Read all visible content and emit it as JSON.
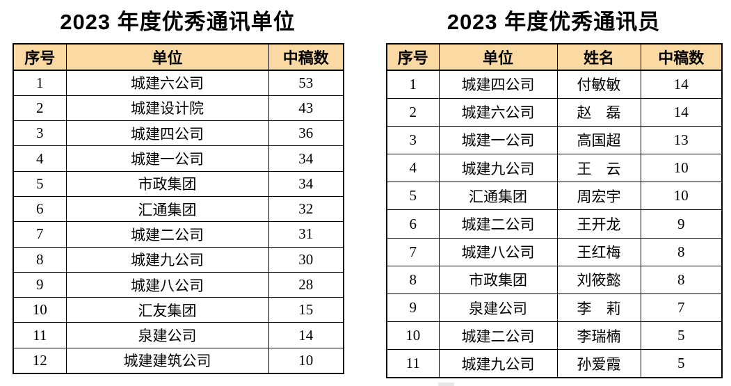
{
  "colors": {
    "header_fill": "#FBD9A2",
    "border": "#000000",
    "text": "#000000",
    "artifact_fill": "#E7E7E7",
    "background": "#FFFFFF"
  },
  "left_table": {
    "title": "2023 年度优秀通讯单位",
    "headers": [
      "序号",
      "单位",
      "中稿数"
    ],
    "rows": [
      [
        "1",
        "城建六公司",
        "53"
      ],
      [
        "2",
        "城建设计院",
        "43"
      ],
      [
        "3",
        "城建四公司",
        "36"
      ],
      [
        "4",
        "城建一公司",
        "34"
      ],
      [
        "5",
        "市政集团",
        "34"
      ],
      [
        "6",
        "汇通集团",
        "32"
      ],
      [
        "7",
        "城建二公司",
        "31"
      ],
      [
        "8",
        "城建九公司",
        "30"
      ],
      [
        "9",
        "城建八公司",
        "28"
      ],
      [
        "10",
        "汇友集团",
        "15"
      ],
      [
        "11",
        "泉建公司",
        "14"
      ],
      [
        "12",
        "城建建筑公司",
        "10"
      ]
    ]
  },
  "right_table": {
    "title": "2023 年度优秀通讯员",
    "headers": [
      "序号",
      "单位",
      "姓名",
      "中稿数"
    ],
    "rows": [
      [
        "1",
        "城建四公司",
        "付敏敏",
        "14"
      ],
      [
        "2",
        "城建六公司",
        "赵　磊",
        "14"
      ],
      [
        "3",
        "城建一公司",
        "高国超",
        "13"
      ],
      [
        "4",
        "城建九公司",
        "王　云",
        "10"
      ],
      [
        "5",
        "汇通集团",
        "周宏宇",
        "10"
      ],
      [
        "6",
        "城建二公司",
        "王开龙",
        "9"
      ],
      [
        "7",
        "城建八公司",
        "王红梅",
        "8"
      ],
      [
        "8",
        "市政集团",
        "刘筱懿",
        "8"
      ],
      [
        "9",
        "泉建公司",
        "李　莉",
        "7"
      ],
      [
        "10",
        "城建二公司",
        "李瑞楠",
        "5"
      ],
      [
        "11",
        "城建九公司",
        "孙爱霞",
        "5"
      ]
    ]
  }
}
